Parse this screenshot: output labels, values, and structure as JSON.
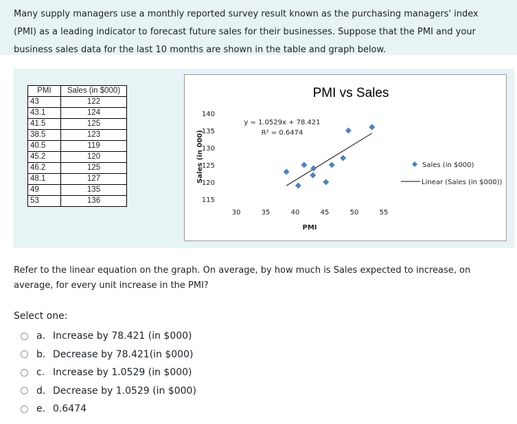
{
  "question": {
    "intro": "Many supply managers use a monthly reported survey result known as the purchasing managers' index (PMI) as a leading indicator to forecast future sales for their businesses. Suppose that the PMI and your business sales data for the last 10 months are shown in the table and graph below.",
    "prompt": "Refer to the linear equation on the graph. On average, by how much is Sales expected to increase, on average, for every unit increase in the PMI?"
  },
  "table": {
    "headers": [
      "PMI",
      "Sales (in $000)"
    ],
    "rows": [
      [
        "43",
        "122"
      ],
      [
        "43.1",
        "124"
      ],
      [
        "41.5",
        "125"
      ],
      [
        "38.5",
        "123"
      ],
      [
        "40.5",
        "119"
      ],
      [
        "45.2",
        "120"
      ],
      [
        "46.2",
        "125"
      ],
      [
        "48.1",
        "127"
      ],
      [
        "49",
        "135"
      ],
      [
        "53",
        "136"
      ]
    ]
  },
  "chart_data": {
    "type": "scatter",
    "title": "PMI vs Sales",
    "xlabel": "PMI",
    "ylabel": "Sales (in 000)",
    "xlim": [
      30,
      55
    ],
    "ylim": [
      115,
      140
    ],
    "x_ticks": [
      "30",
      "35",
      "40",
      "45",
      "50",
      "55"
    ],
    "y_ticks": [
      "115",
      "120",
      "125",
      "130",
      "135",
      "140"
    ],
    "series": [
      {
        "name": "Sales (in $000)",
        "x": [
          43,
          43.1,
          41.5,
          38.5,
          40.5,
          45.2,
          46.2,
          48.1,
          49,
          53
        ],
        "y": [
          122,
          124,
          125,
          123,
          119,
          120,
          125,
          127,
          135,
          136
        ],
        "color": "#4f81bd",
        "marker": "diamond"
      }
    ],
    "trendline": {
      "name": "Linear (Sales (in $000))",
      "slope": 1.0529,
      "intercept": 78.421,
      "x_range": [
        38.5,
        53
      ],
      "color": "#000000"
    },
    "annotations": [
      "y = 1.0529x + 78.421",
      "R² = 0.6474"
    ],
    "legend_position": "right"
  },
  "select_label": "Select one:",
  "options": [
    {
      "letter": "a.",
      "text": "Increase by 78.421 (in $000)"
    },
    {
      "letter": "b.",
      "text": "Decrease by 78.421(in $000)"
    },
    {
      "letter": "c.",
      "text": "Increase by 1.0529 (in $000)"
    },
    {
      "letter": "d.",
      "text": "Decrease by 1.0529 (in $000)"
    },
    {
      "letter": "e.",
      "text": "0.6474"
    }
  ]
}
